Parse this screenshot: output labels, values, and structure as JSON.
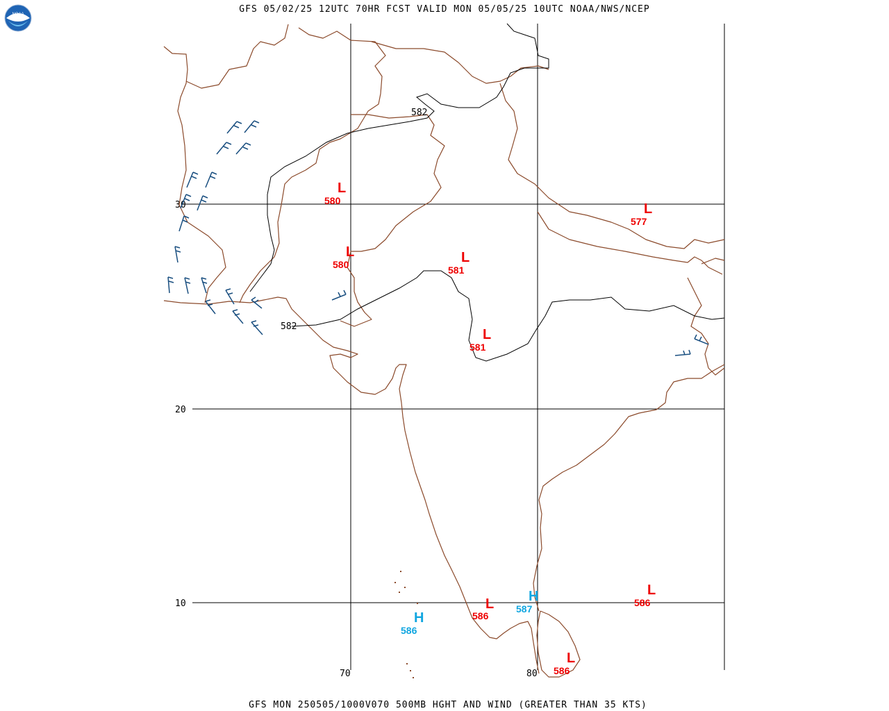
{
  "header": {
    "title": "GFS 05/02/25 12UTC 70HR FCST VALID MON 05/05/25 10UTC NOAA/NWS/NCEP"
  },
  "footer": {
    "caption": "GFS MON 250505/1000V070 500MB HGHT AND WIND (GREATER THAN 35 KTS)"
  },
  "logo": {
    "icon": "noaa-logo",
    "text": "NOAA"
  },
  "grid": {
    "lat_labels": [
      "30",
      "20",
      "10"
    ],
    "lon_labels": [
      "70",
      "80"
    ]
  },
  "contours": [
    {
      "label": "582"
    },
    {
      "label": "582"
    }
  ],
  "centers": [
    {
      "type": "L",
      "value": "580",
      "color": "#ee0000"
    },
    {
      "type": "L",
      "value": "580",
      "color": "#ee0000"
    },
    {
      "type": "L",
      "value": "581",
      "color": "#ee0000"
    },
    {
      "type": "L",
      "value": "581",
      "color": "#ee0000"
    },
    {
      "type": "L",
      "value": "577",
      "color": "#ee0000"
    },
    {
      "type": "L",
      "value": "586",
      "color": "#ee0000"
    },
    {
      "type": "L",
      "value": "586",
      "color": "#ee0000"
    },
    {
      "type": "L",
      "value": "586",
      "color": "#ee0000"
    },
    {
      "type": "H",
      "value": "586",
      "color": "#11a6e0"
    },
    {
      "type": "H",
      "value": "587",
      "color": "#11a6e0"
    }
  ],
  "colors": {
    "boundary": "#8b4a2b",
    "contour": "#000000",
    "wind_barb": "#1a4f80",
    "low": "#ee0000",
    "high": "#11a6e0"
  }
}
